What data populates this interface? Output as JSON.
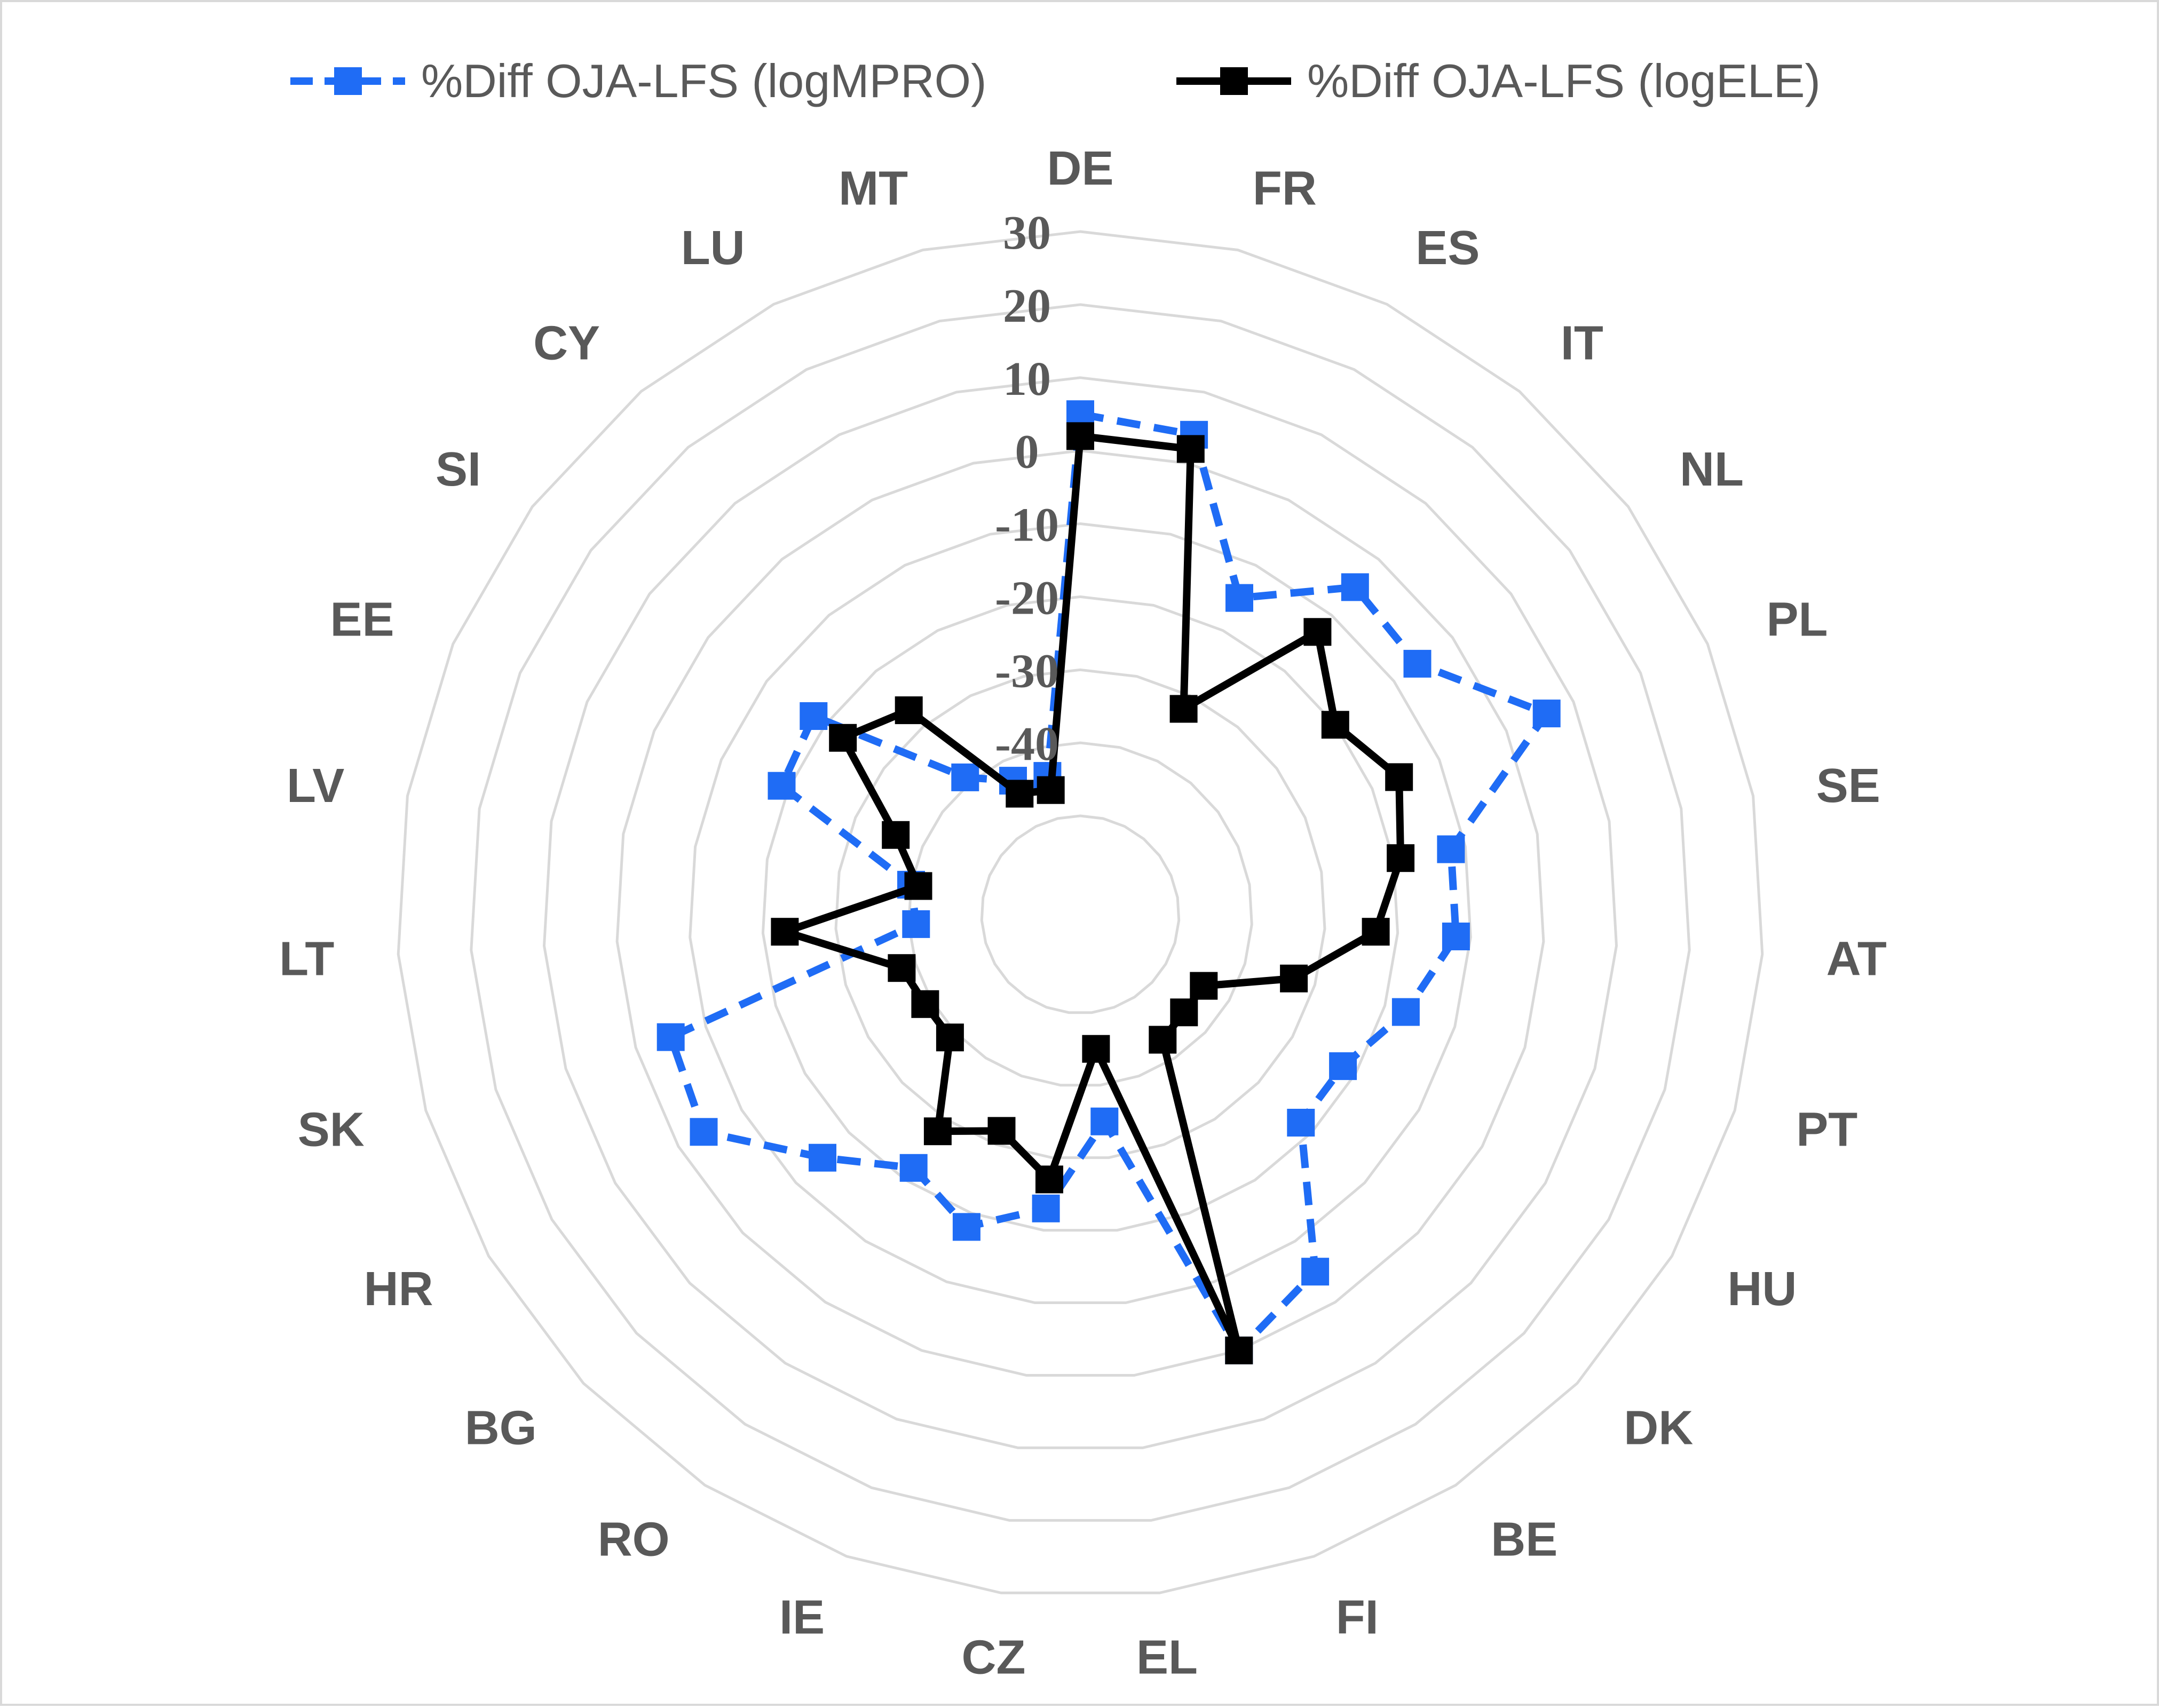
{
  "chart_data": {
    "type": "radar",
    "categories": [
      "DE",
      "FR",
      "ES",
      "IT",
      "NL",
      "PL",
      "SE",
      "AT",
      "PT",
      "HU",
      "DK",
      "BE",
      "FI",
      "EL",
      "CZ",
      "IE",
      "RO",
      "BG",
      "HR",
      "SK",
      "LT",
      "LV",
      "EE",
      "SI",
      "CY",
      "LU",
      "MT"
    ],
    "ticks": [
      30,
      20,
      10,
      0,
      -10,
      -20,
      -30,
      -40
    ],
    "rlim": [
      -50,
      30
    ],
    "grid": true,
    "legend_position": "top",
    "series": [
      {
        "name": "%Diff OJA-LFS (logMPRO)",
        "color": "#1f6cf5",
        "style": "dashed",
        "values": [
          5,
          4,
          -15,
          -5,
          -6,
          6,
          -12,
          -12,
          -17,
          -22,
          -22,
          -5,
          0,
          -35,
          -23,
          -18,
          -22,
          -15,
          -4,
          -5,
          -41,
          -40,
          -19,
          -18,
          -39,
          -43,
          -44
        ]
      },
      {
        "name": "%Diff OJA-LFS (logELE)",
        "color": "#000000",
        "style": "solid",
        "values": [
          2,
          2,
          -32,
          -13,
          -20,
          -16,
          -19,
          -23,
          -33,
          -44,
          -44,
          -43,
          0,
          -45,
          -27,
          -32,
          -28,
          -39,
          -39,
          -38,
          -23,
          -41,
          -36,
          -23,
          -27,
          -45,
          -46
        ]
      }
    ]
  }
}
